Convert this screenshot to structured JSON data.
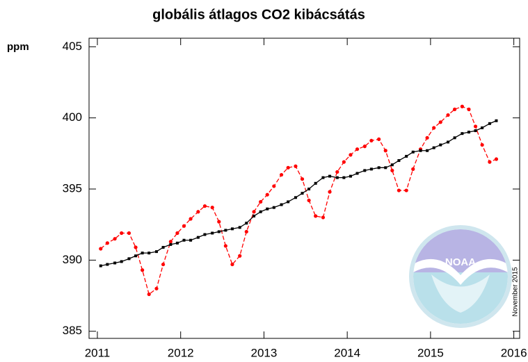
{
  "chart_data": {
    "type": "line",
    "title": "globális átlagos CO2 kibácsátás",
    "ylabel": "ppm",
    "annotation": "November 2015",
    "logo_text": "NOAA",
    "xlim": [
      2010.9,
      2016.07
    ],
    "xticks": [
      2011,
      2012,
      2013,
      2014,
      2015,
      2016
    ],
    "ylim": [
      384.5,
      405.6
    ],
    "yticks": [
      385,
      390,
      395,
      400,
      405
    ],
    "x": [
      2011.04,
      2011.12,
      2011.21,
      2011.29,
      2011.38,
      2011.46,
      2011.54,
      2011.62,
      2011.71,
      2011.79,
      2011.88,
      2011.96,
      2012.04,
      2012.12,
      2012.21,
      2012.29,
      2012.38,
      2012.46,
      2012.54,
      2012.62,
      2012.71,
      2012.79,
      2012.88,
      2012.96,
      2013.04,
      2013.12,
      2013.21,
      2013.29,
      2013.38,
      2013.46,
      2013.54,
      2013.62,
      2013.71,
      2013.79,
      2013.88,
      2013.96,
      2014.04,
      2014.12,
      2014.21,
      2014.29,
      2014.38,
      2014.46,
      2014.54,
      2014.62,
      2014.71,
      2014.79,
      2014.88,
      2014.96,
      2015.04,
      2015.12,
      2015.21,
      2015.29,
      2015.38,
      2015.46,
      2015.54,
      2015.62,
      2015.71,
      2015.79
    ],
    "series": [
      {
        "color": "#ff0000",
        "dashed": true,
        "marker": "circle",
        "values": [
          390.8,
          391.2,
          391.5,
          391.9,
          391.9,
          390.9,
          389.3,
          387.6,
          388.0,
          389.7,
          391.3,
          391.9,
          392.4,
          392.9,
          393.4,
          393.8,
          393.7,
          392.7,
          391.0,
          389.7,
          390.3,
          392.0,
          393.4,
          394.1,
          394.6,
          395.2,
          396.0,
          396.5,
          396.6,
          395.7,
          394.2,
          393.1,
          393.0,
          394.8,
          396.2,
          396.9,
          397.4,
          397.8,
          398.0,
          398.4,
          398.5,
          397.7,
          396.3,
          394.9,
          394.9,
          396.4,
          397.8,
          398.6,
          399.3,
          399.7,
          400.2,
          400.6,
          400.8,
          400.6,
          399.4,
          398.1,
          396.9,
          397.1
        ]
      },
      {
        "color": "#000000",
        "dashed": false,
        "marker": "square",
        "values": [
          389.6,
          389.7,
          389.8,
          389.9,
          390.1,
          390.3,
          390.5,
          390.5,
          390.6,
          390.9,
          391.1,
          391.2,
          391.4,
          391.4,
          391.6,
          391.8,
          391.9,
          392.0,
          392.1,
          392.2,
          392.3,
          392.6,
          393.1,
          393.4,
          393.6,
          393.7,
          393.9,
          394.1,
          394.4,
          394.7,
          395.0,
          395.4,
          395.8,
          395.9,
          395.8,
          395.8,
          395.9,
          396.1,
          396.3,
          396.4,
          396.5,
          396.5,
          396.7,
          397.0,
          397.3,
          397.6,
          397.7,
          397.7,
          397.9,
          398.1,
          398.3,
          398.6,
          398.9,
          399.0,
          399.1,
          399.3,
          399.6,
          399.8
        ]
      }
    ]
  }
}
